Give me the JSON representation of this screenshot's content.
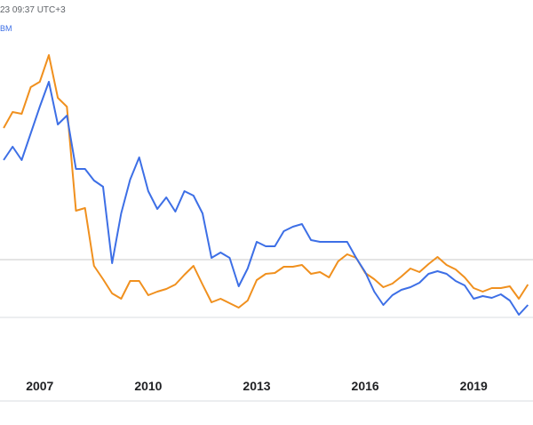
{
  "chart_data": {
    "type": "line",
    "timestamp": "23 09:37 UTC+3",
    "x": [
      2006.0,
      2006.25,
      2006.5,
      2006.75,
      2007.0,
      2007.25,
      2007.5,
      2007.75,
      2008.0,
      2008.25,
      2008.5,
      2008.75,
      2009.0,
      2009.25,
      2009.5,
      2009.75,
      2010.0,
      2010.25,
      2010.5,
      2010.75,
      2011.0,
      2011.25,
      2011.5,
      2011.75,
      2012.0,
      2012.25,
      2012.5,
      2012.75,
      2013.0,
      2013.25,
      2013.5,
      2013.75,
      2014.0,
      2014.25,
      2014.5,
      2014.75,
      2015.0,
      2015.25,
      2015.5,
      2015.75,
      2016.0,
      2016.25,
      2016.5,
      2016.75,
      2017.0,
      2017.25,
      2017.5,
      2017.75,
      2018.0,
      2018.25,
      2018.5,
      2018.75,
      2019.0,
      2019.25,
      2019.5,
      2019.75,
      2020.0,
      2020.25,
      2020.5
    ],
    "series": [
      {
        "name": "BM",
        "color": "#3d6fe6",
        "values": [
          112,
          127,
          112,
          142,
          172,
          200,
          152,
          162,
          102,
          102,
          89,
          82,
          -4,
          52,
          90,
          115,
          77,
          57,
          70,
          54,
          77,
          72,
          52,
          2,
          8,
          2,
          -30,
          -10,
          20,
          15,
          15,
          32,
          37,
          40,
          22,
          20,
          20,
          20,
          20,
          2,
          -14,
          -36,
          -51,
          -40,
          -34,
          -31,
          -26,
          -16,
          -13,
          -16,
          -24,
          -29,
          -44,
          -41,
          -43,
          -39,
          -46,
          -62,
          -51
        ]
      },
      {
        "color": "#f0901e",
        "values": [
          148,
          166,
          164,
          194,
          200,
          230,
          182,
          172,
          55,
          58,
          -7,
          -22,
          -38,
          -44,
          -24,
          -24,
          -40,
          -36,
          -33,
          -28,
          -17,
          -7,
          -28,
          -48,
          -44,
          -49,
          -54,
          -46,
          -23,
          -16,
          -15,
          -8,
          -8,
          -6,
          -16,
          -14,
          -20,
          -2,
          6,
          2,
          -15,
          -22,
          -31,
          -27,
          -19,
          -10,
          -14,
          -5,
          3,
          -6,
          -11,
          -20,
          -32,
          -36,
          -32,
          -32,
          -30,
          -44,
          -28
        ]
      }
    ],
    "xlim": [
      2005.9,
      2020.64
    ],
    "ylim": [
      -108,
      292
    ],
    "xticks": [
      2007,
      2010,
      2013,
      2016,
      2019
    ]
  }
}
